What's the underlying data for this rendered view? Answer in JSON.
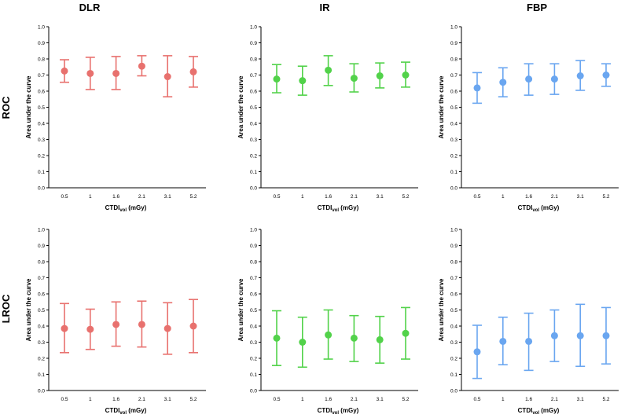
{
  "column_titles": [
    "DLR",
    "IR",
    "FBP"
  ],
  "row_titles": [
    "ROC",
    "LROC"
  ],
  "colors": {
    "DLR": "#e8716e",
    "IR": "#52d24a",
    "FBP": "#6aa6f0"
  },
  "chart_data": [
    {
      "type": "scatter",
      "row": "ROC",
      "column": "DLR",
      "title": "DLR",
      "xlabel": "CTDIvol (mGy)",
      "ylabel": "Area under the curve",
      "ylim": [
        0,
        1.0
      ],
      "yticks": [
        "0.0",
        "0.1",
        "0.2",
        "0.3",
        "0.4",
        "0.5",
        "0.6",
        "0.7",
        "0.8",
        "0.9",
        "1.0"
      ],
      "categories": [
        "0.5",
        "1",
        "1.6",
        "2.1",
        "3.1",
        "5.2"
      ],
      "values": [
        0.725,
        0.71,
        0.71,
        0.755,
        0.69,
        0.72
      ],
      "lower": [
        0.655,
        0.61,
        0.61,
        0.695,
        0.565,
        0.625
      ],
      "upper": [
        0.795,
        0.81,
        0.815,
        0.82,
        0.82,
        0.815
      ]
    },
    {
      "type": "scatter",
      "row": "ROC",
      "column": "IR",
      "title": "IR",
      "xlabel": "CTDIvol (mGy)",
      "ylabel": "Area under the curve",
      "ylim": [
        0,
        1.0
      ],
      "yticks": [
        "0.0",
        "0.1",
        "0.2",
        "0.3",
        "0.4",
        "0.5",
        "0.6",
        "0.7",
        "0.8",
        "0.9",
        "1.0"
      ],
      "categories": [
        "0.5",
        "1",
        "1.6",
        "2.1",
        "3.1",
        "5.2"
      ],
      "values": [
        0.675,
        0.665,
        0.73,
        0.68,
        0.695,
        0.7
      ],
      "lower": [
        0.59,
        0.575,
        0.635,
        0.595,
        0.62,
        0.625
      ],
      "upper": [
        0.765,
        0.755,
        0.82,
        0.77,
        0.775,
        0.78
      ]
    },
    {
      "type": "scatter",
      "row": "ROC",
      "column": "FBP",
      "title": "FBP",
      "xlabel": "CTDIvol (mGy)",
      "ylabel": "Area under the curve",
      "ylim": [
        0,
        1.0
      ],
      "yticks": [
        "0.0",
        "0.1",
        "0.2",
        "0.3",
        "0.4",
        "0.5",
        "0.6",
        "0.7",
        "0.8",
        "0.9",
        "1.0"
      ],
      "categories": [
        "0.5",
        "1",
        "1.6",
        "2.1",
        "3.1",
        "5.2"
      ],
      "values": [
        0.62,
        0.655,
        0.675,
        0.675,
        0.695,
        0.7
      ],
      "lower": [
        0.525,
        0.565,
        0.575,
        0.58,
        0.605,
        0.63
      ],
      "upper": [
        0.715,
        0.745,
        0.77,
        0.77,
        0.79,
        0.77
      ]
    },
    {
      "type": "scatter",
      "row": "LROC",
      "column": "DLR",
      "title": "DLR",
      "xlabel": "CTDIvol (mGy)",
      "ylabel": "Area under the curve",
      "ylim": [
        0,
        1.0
      ],
      "yticks": [
        "0.0",
        "0.1",
        "0.2",
        "0.3",
        "0.4",
        "0.5",
        "0.6",
        "0.7",
        "0.8",
        "0.9",
        "1.0"
      ],
      "categories": [
        "0.5",
        "1",
        "1.6",
        "2.1",
        "3.1",
        "5.2"
      ],
      "values": [
        0.385,
        0.38,
        0.41,
        0.41,
        0.385,
        0.4
      ],
      "lower": [
        0.235,
        0.255,
        0.275,
        0.27,
        0.225,
        0.235
      ],
      "upper": [
        0.54,
        0.505,
        0.55,
        0.555,
        0.545,
        0.565
      ]
    },
    {
      "type": "scatter",
      "row": "LROC",
      "column": "IR",
      "title": "IR",
      "xlabel": "CTDIvol (mGy)",
      "ylabel": "Area under the curve",
      "ylim": [
        0,
        1.0
      ],
      "yticks": [
        "0.0",
        "0.1",
        "0.2",
        "0.3",
        "0.4",
        "0.5",
        "0.6",
        "0.7",
        "0.8",
        "0.9",
        "1.0"
      ],
      "categories": [
        "0.5",
        "1",
        "1.6",
        "2.1",
        "3.1",
        "5.2"
      ],
      "values": [
        0.325,
        0.3,
        0.345,
        0.325,
        0.315,
        0.355
      ],
      "lower": [
        0.155,
        0.145,
        0.195,
        0.18,
        0.17,
        0.195
      ],
      "upper": [
        0.495,
        0.455,
        0.5,
        0.465,
        0.46,
        0.515
      ]
    },
    {
      "type": "scatter",
      "row": "LROC",
      "column": "FBP",
      "title": "FBP",
      "xlabel": "CTDIvol (mGy)",
      "ylabel": "Area under the curve",
      "ylim": [
        0,
        1.0
      ],
      "yticks": [
        "0.0",
        "0.1",
        "0.2",
        "0.3",
        "0.4",
        "0.5",
        "0.6",
        "0.7",
        "0.8",
        "0.9",
        "1.0"
      ],
      "categories": [
        "0.5",
        "1",
        "1.6",
        "2.1",
        "3.1",
        "5.2"
      ],
      "values": [
        0.24,
        0.305,
        0.305,
        0.34,
        0.34,
        0.34
      ],
      "lower": [
        0.075,
        0.16,
        0.125,
        0.18,
        0.15,
        0.165
      ],
      "upper": [
        0.405,
        0.455,
        0.48,
        0.5,
        0.535,
        0.515
      ]
    }
  ]
}
